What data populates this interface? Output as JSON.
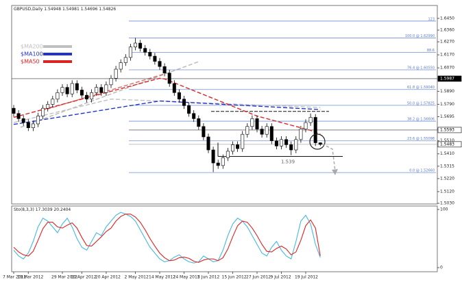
{
  "chart_data": [
    {
      "type": "candlestick",
      "title": "GBPUSD,Daily",
      "categories": [
        "7 Mar 2012",
        null,
        null,
        "19 Mar 2012",
        null,
        null,
        null,
        null,
        null,
        null,
        "29 Mar 2012",
        null,
        null,
        null,
        "10 Apr 2012",
        null,
        null,
        null,
        null,
        "20 Apr 2012",
        null,
        null,
        null,
        null,
        null,
        "2 May 2012",
        null,
        null,
        null,
        null,
        "14 May 2012",
        null,
        null,
        null,
        null,
        "24 May 2012",
        null,
        null,
        null,
        null,
        "5 Jun 2012",
        null,
        null,
        null,
        null,
        "15 Jun 2012",
        null,
        null,
        null,
        null,
        "27 Jun 2012",
        null,
        null,
        null,
        null,
        "9 Jul 2012",
        null,
        null,
        null,
        null,
        "19 Jul 2012",
        null,
        null,
        null
      ],
      "open": [
        1.576,
        1.572,
        1.568,
        1.565,
        1.561,
        1.564,
        1.57,
        1.576,
        1.579,
        1.583,
        1.588,
        1.592,
        1.587,
        1.595,
        1.59,
        1.586,
        1.583,
        1.588,
        1.592,
        1.588,
        1.594,
        1.599,
        1.606,
        1.611,
        1.615,
        1.623,
        1.626,
        1.622,
        1.619,
        1.616,
        1.612,
        1.608,
        1.603,
        1.595,
        1.588,
        1.583,
        1.578,
        1.572,
        1.568,
        1.562,
        1.554,
        1.544,
        1.534,
        1.532,
        1.538,
        1.543,
        1.548,
        1.545,
        1.556,
        1.562,
        1.568,
        1.56,
        1.556,
        1.562,
        1.551,
        1.547,
        1.552,
        1.548,
        1.544,
        1.552,
        1.56,
        1.565,
        1.569,
        1.54948
      ],
      "high": [
        1.5785,
        1.5745,
        1.5705,
        1.5675,
        1.5665,
        1.5725,
        1.5785,
        1.5815,
        1.5855,
        1.5905,
        1.5945,
        1.5945,
        1.5975,
        1.5975,
        1.5925,
        1.5885,
        1.5905,
        1.5945,
        1.5945,
        1.5965,
        1.6015,
        1.6085,
        1.6135,
        1.6175,
        1.6255,
        1.63,
        1.6285,
        1.6245,
        1.6215,
        1.6185,
        1.6145,
        1.6105,
        1.6055,
        1.5975,
        1.5905,
        1.5855,
        1.5805,
        1.5745,
        1.5705,
        1.5645,
        1.5565,
        1.5465,
        1.5365,
        1.5405,
        1.5455,
        1.5505,
        1.5505,
        1.5585,
        1.5645,
        1.5705,
        1.5705,
        1.5625,
        1.5645,
        1.5645,
        1.5535,
        1.5545,
        1.5545,
        1.5505,
        1.5545,
        1.5625,
        1.5675,
        1.572,
        1.5715,
        1.54981
      ],
      "low": [
        1.5695,
        1.5655,
        1.5625,
        1.5585,
        1.5585,
        1.5615,
        1.5675,
        1.5735,
        1.5765,
        1.5805,
        1.5855,
        1.5845,
        1.5845,
        1.5875,
        1.5835,
        1.5805,
        1.5805,
        1.5855,
        1.5855,
        1.5855,
        1.5915,
        1.5965,
        1.6035,
        1.6085,
        1.6125,
        1.6205,
        1.6195,
        1.6165,
        1.6135,
        1.6095,
        1.6055,
        1.6005,
        1.5925,
        1.5855,
        1.5805,
        1.5755,
        1.5695,
        1.5655,
        1.5595,
        1.5515,
        1.5415,
        1.527,
        1.5295,
        1.5295,
        1.5355,
        1.5405,
        1.5425,
        1.5425,
        1.5535,
        1.5595,
        1.5575,
        1.5535,
        1.5535,
        1.5485,
        1.5445,
        1.5445,
        1.5455,
        1.54,
        1.5415,
        1.5495,
        1.5575,
        1.5625,
        1.547,
        1.54696
      ],
      "close": [
        1.572,
        1.568,
        1.565,
        1.561,
        1.564,
        1.57,
        1.576,
        1.579,
        1.583,
        1.588,
        1.592,
        1.587,
        1.595,
        1.59,
        1.586,
        1.583,
        1.588,
        1.592,
        1.588,
        1.594,
        1.599,
        1.606,
        1.611,
        1.615,
        1.623,
        1.626,
        1.622,
        1.619,
        1.616,
        1.612,
        1.608,
        1.603,
        1.595,
        1.588,
        1.583,
        1.578,
        1.572,
        1.568,
        1.562,
        1.554,
        1.544,
        1.534,
        1.532,
        1.538,
        1.543,
        1.548,
        1.545,
        1.556,
        1.562,
        1.568,
        1.56,
        1.556,
        1.562,
        1.551,
        1.547,
        1.552,
        1.548,
        1.544,
        1.552,
        1.56,
        1.565,
        1.569,
        1.5495,
        1.54826
      ],
      "series": [
        {
          "name": "$MA200",
          "color": "#c0c0c0",
          "values": [
            1.565,
            1.5659,
            1.5668,
            1.5677,
            1.5686,
            1.5695,
            1.5704,
            1.5713,
            1.5722,
            1.5731,
            1.574,
            1.5749,
            1.5758,
            1.5767,
            1.5776,
            1.5785,
            1.5794,
            1.5803,
            1.5812,
            1.5821,
            1.583,
            1.5829,
            1.5827,
            1.5826,
            1.5824,
            1.5823,
            1.5821,
            1.582,
            1.5818,
            1.5817,
            1.5815,
            1.5814,
            1.5812,
            1.5811,
            1.5809,
            1.5808,
            1.5806,
            1.5805,
            1.5803,
            1.5802,
            1.58,
            1.5799,
            1.5797,
            1.5796,
            1.5794,
            1.5793,
            1.5791,
            1.579,
            1.5788,
            1.5787,
            1.5785,
            1.5784,
            1.5782,
            1.5781,
            1.5779,
            1.5778,
            1.5776,
            1.5775,
            1.5773,
            1.5772,
            1.577,
            1.5769,
            1.5767,
            1.5766
          ]
        },
        {
          "name": "$MA100",
          "color": "#2233cc",
          "values": [
            1.5636,
            1.5642,
            1.5648,
            1.5654,
            1.566,
            1.5666,
            1.5672,
            1.5678,
            1.5684,
            1.569,
            1.5696,
            1.5702,
            1.5708,
            1.5714,
            1.572,
            1.5726,
            1.5732,
            1.5738,
            1.5744,
            1.575,
            1.5756,
            1.5762,
            1.5768,
            1.5774,
            1.578,
            1.5786,
            1.5792,
            1.5798,
            1.5804,
            1.581,
            1.5816,
            1.5814,
            1.5812,
            1.581,
            1.5808,
            1.5806,
            1.5804,
            1.5802,
            1.58,
            1.5798,
            1.5796,
            1.5794,
            1.5792,
            1.579,
            1.5788,
            1.5786,
            1.5784,
            1.5782,
            1.578,
            1.5778,
            1.5776,
            1.5774,
            1.5772,
            1.577,
            1.5768,
            1.5766,
            1.5764,
            1.5762,
            1.576,
            1.5758,
            1.5756,
            1.5754,
            1.5752,
            1.575
          ]
        },
        {
          "name": "$MA50",
          "color": "#dd2222",
          "values": [
            1.569,
            1.57,
            1.571,
            1.572,
            1.573,
            1.574,
            1.575,
            1.576,
            1.577,
            1.578,
            1.579,
            1.58,
            1.581,
            1.582,
            1.583,
            1.584,
            1.585,
            1.586,
            1.587,
            1.588,
            1.589,
            1.59,
            1.591,
            1.592,
            1.593,
            1.594,
            1.595,
            1.596,
            1.597,
            1.598,
            1.599,
            1.5985,
            1.597,
            1.5955,
            1.594,
            1.5925,
            1.591,
            1.5895,
            1.588,
            1.5865,
            1.585,
            1.5835,
            1.582,
            1.5805,
            1.579,
            1.5775,
            1.576,
            1.5745,
            1.573,
            1.5715,
            1.57,
            1.569,
            1.568,
            1.567,
            1.566,
            1.565,
            1.564,
            1.563,
            1.562,
            1.561,
            1.56,
            1.559,
            1.5575,
            1.556
          ]
        }
      ],
      "ylim": [
        1.5025,
        1.6549
      ],
      "yticks": [
        {
          "value": 1.645,
          "label": "1.6450"
        },
        {
          "value": 1.636,
          "label": "1.6360"
        },
        {
          "value": 1.627,
          "label": "1.6270"
        },
        {
          "value": 1.617,
          "label": "1.6170"
        },
        {
          "value": 1.607,
          "label": "1.6070"
        },
        {
          "value": 1.598,
          "label": "1.5980"
        },
        {
          "value": 1.589,
          "label": "1.5890"
        },
        {
          "value": 1.579,
          "label": "1.5790"
        },
        {
          "value": 1.5695,
          "label": "1.5695"
        },
        {
          "value": 1.56,
          "label": "1.5600"
        },
        {
          "value": 1.551,
          "label": "1.5510"
        },
        {
          "value": 1.541,
          "label": "1.5410"
        },
        {
          "value": 1.5315,
          "label": "1.5315"
        },
        {
          "value": 1.522,
          "label": "1.5220"
        },
        {
          "value": 1.512,
          "label": "1.5120"
        },
        {
          "value": 1.503,
          "label": "1.5030"
        }
      ],
      "fibonacci": [
        {
          "value": 1.6429,
          "label": "123"
        },
        {
          "value": 1.6299,
          "label": "100.0 @ 1.62990"
        },
        {
          "value": 1.6189,
          "label": "88.6"
        },
        {
          "value": 1.6055,
          "label": "76.4 @ 1.60550"
        },
        {
          "value": 1.5904,
          "label": "61.8 @ 1.59040"
        },
        {
          "value": 1.57825,
          "label": "50.0 @ 1.57825"
        },
        {
          "value": 1.56606,
          "label": "38.2 @ 1.56606"
        },
        {
          "value": 1.55098,
          "label": "23.6 @ 1.55098"
        },
        {
          "value": 1.5266,
          "label": "0.0 @ 1.52660"
        }
      ],
      "support": 1.539,
      "resistance": 1.5736,
      "price_markers": [
        1.5987,
        1.5593,
        1.5483
      ]
    },
    {
      "type": "line",
      "title": "Sto(8,3,3)",
      "series": [
        {
          "color": "#45b8e0",
          "values": [
            30,
            20,
            15,
            25,
            45,
            70,
            85,
            80,
            70,
            60,
            75,
            85,
            70,
            50,
            35,
            30,
            45,
            60,
            55,
            70,
            80,
            90,
            95,
            92,
            88,
            80,
            65,
            50,
            35,
            25,
            15,
            10,
            12,
            18,
            22,
            15,
            10,
            8,
            10,
            20,
            15,
            10,
            12,
            30,
            55,
            75,
            85,
            80,
            70,
            55,
            40,
            25,
            20,
            35,
            45,
            30,
            20,
            15,
            45,
            80,
            90,
            75,
            40,
            17.3039
          ]
        },
        {
          "color": "#e02020",
          "values": [
            35,
            27,
            22,
            20,
            28,
            47,
            67,
            78,
            78,
            70,
            68,
            73,
            77,
            68,
            52,
            38,
            37,
            45,
            53,
            62,
            68,
            80,
            88,
            92,
            92,
            87,
            78,
            65,
            50,
            37,
            25,
            17,
            12,
            13,
            17,
            18,
            16,
            11,
            9,
            13,
            15,
            15,
            12,
            17,
            32,
            53,
            72,
            80,
            78,
            68,
            55,
            40,
            28,
            27,
            33,
            37,
            32,
            22,
            27,
            47,
            72,
            82,
            68,
            20.2404
          ]
        }
      ],
      "ylim": [
        0,
        100
      ],
      "yticks": [
        100,
        0
      ]
    }
  ]
}
